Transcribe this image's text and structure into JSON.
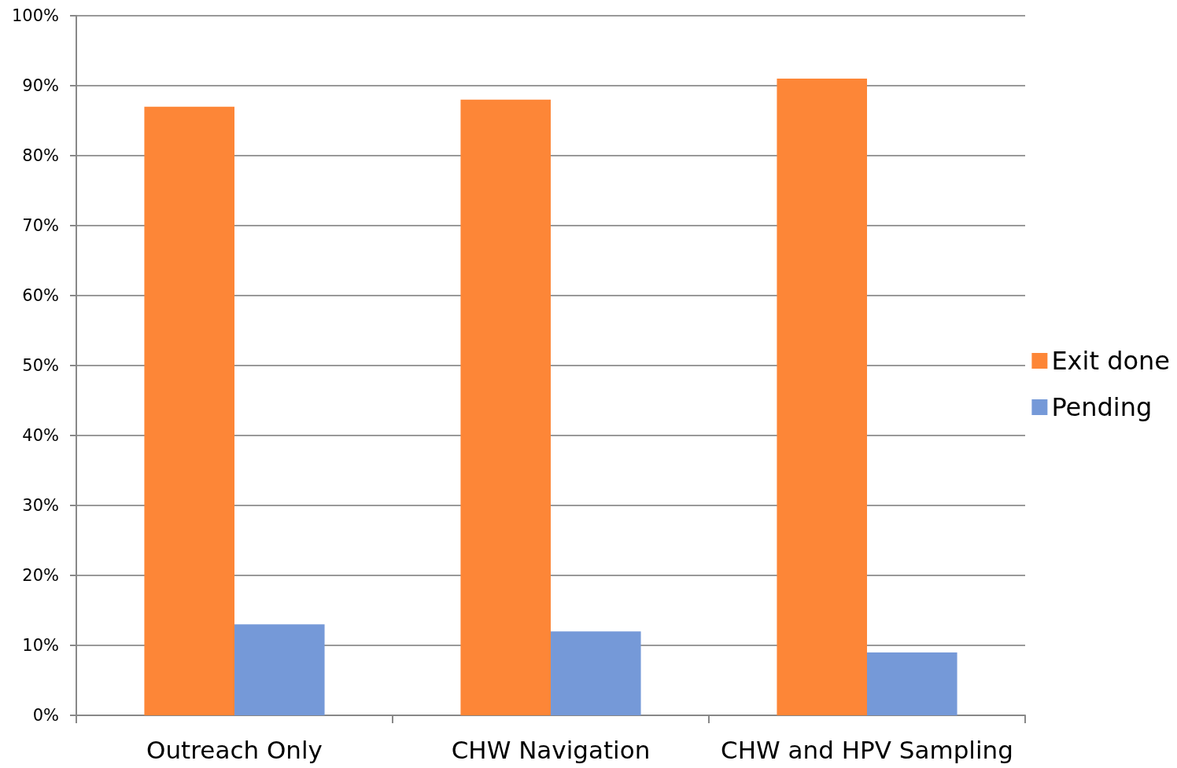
{
  "chart_data": {
    "type": "bar",
    "categories": [
      "Outreach Only",
      "CHW Navigation",
      "CHW and HPV Sampling"
    ],
    "series": [
      {
        "name": "Exit done",
        "color": "#fd8637",
        "values": [
          87,
          88,
          91
        ]
      },
      {
        "name": "Pending",
        "color": "#7599d8",
        "values": [
          13,
          12,
          9
        ]
      }
    ],
    "ylim": [
      0,
      100
    ],
    "yticks": [
      {
        "value": 0,
        "label": "0%"
      },
      {
        "value": 10,
        "label": "10%"
      },
      {
        "value": 20,
        "label": "20%"
      },
      {
        "value": 30,
        "label": "30%"
      },
      {
        "value": 40,
        "label": "40%"
      },
      {
        "value": 50,
        "label": "50%"
      },
      {
        "value": 60,
        "label": "60%"
      },
      {
        "value": 70,
        "label": "70%"
      },
      {
        "value": 80,
        "label": "80%"
      },
      {
        "value": 90,
        "label": "90%"
      },
      {
        "value": 100,
        "label": "100%"
      }
    ],
    "grid": "y",
    "legend": "right"
  }
}
